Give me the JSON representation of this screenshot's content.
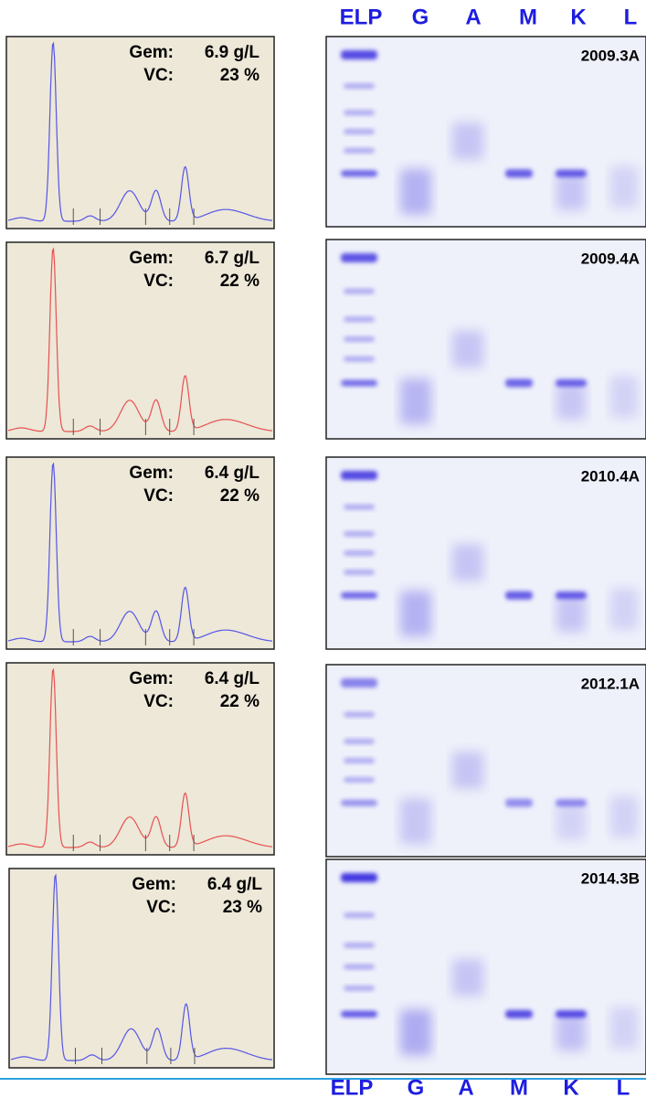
{
  "lanes_top": [
    "ELP",
    "G",
    "A",
    "M",
    "K",
    "L"
  ],
  "panels": [
    {
      "gem_label": "Gem:",
      "gem": "6.9 g/L",
      "vc_label": "VC:",
      "vc": "23 %",
      "gel_label": "2009.3A"
    },
    {
      "gem_label": "Gem:",
      "gem": "6.7 g/L",
      "vc_label": "VC:",
      "vc": "22 %",
      "gel_label": "2009.4A"
    },
    {
      "gem_label": "Gem:",
      "gem": "6.4 g/L",
      "vc_label": "VC:",
      "vc": "22 %",
      "gel_label": "2010.4A"
    },
    {
      "gem_label": "Gem:",
      "gem": "6.4 g/L",
      "vc_label": "VC:",
      "vc": "22 %",
      "gel_label": "2012.1A"
    },
    {
      "gem_label": "Gem:",
      "gem": "6.4 g/L",
      "vc_label": "VC:",
      "vc": "23 %",
      "gel_label": "2014.3B"
    }
  ],
  "lanes_bottom": [
    "ELP",
    "G",
    "A",
    "M",
    "K",
    "L"
  ]
}
